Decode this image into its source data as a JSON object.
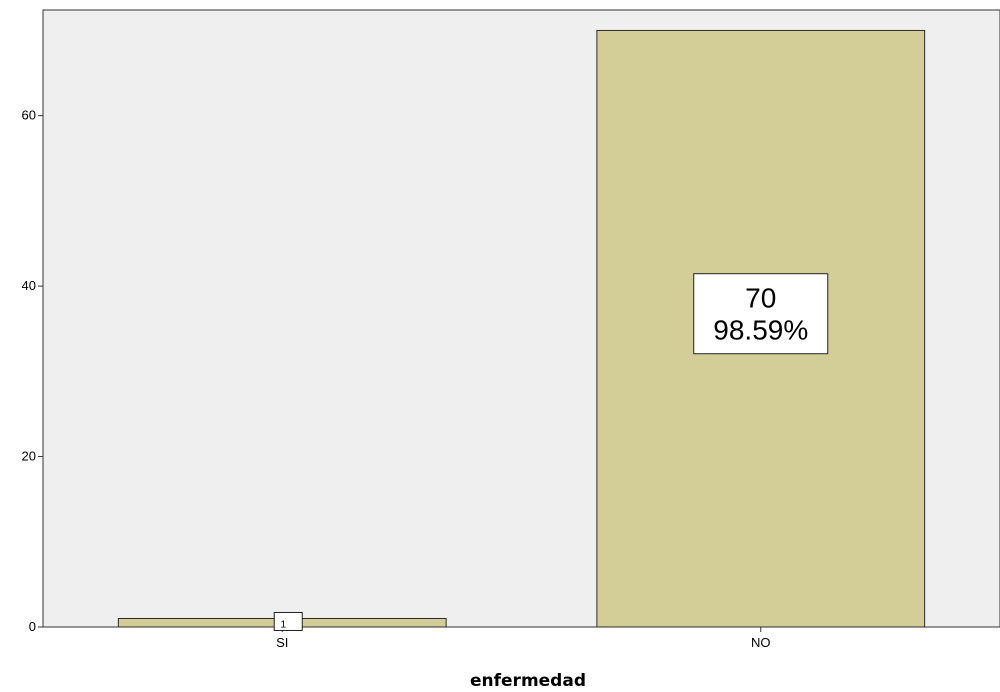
{
  "chart_data": {
    "type": "bar",
    "categories": [
      "SI",
      "NO"
    ],
    "values": [
      1,
      70
    ],
    "data_labels": [
      {
        "count": "1",
        "percent": ""
      },
      {
        "count": "70",
        "percent": "98.59%"
      }
    ],
    "xlabel": "enfermedad",
    "ylabel": "",
    "yticks": [
      0,
      20,
      40,
      60
    ],
    "ylim": [
      0,
      72.4
    ],
    "grid": false,
    "colors": {
      "plot_background": "#efefef",
      "bar_fill": "#d3ce97",
      "bar_stroke": "#2b2b2b",
      "label_box": "#ffffff"
    }
  }
}
